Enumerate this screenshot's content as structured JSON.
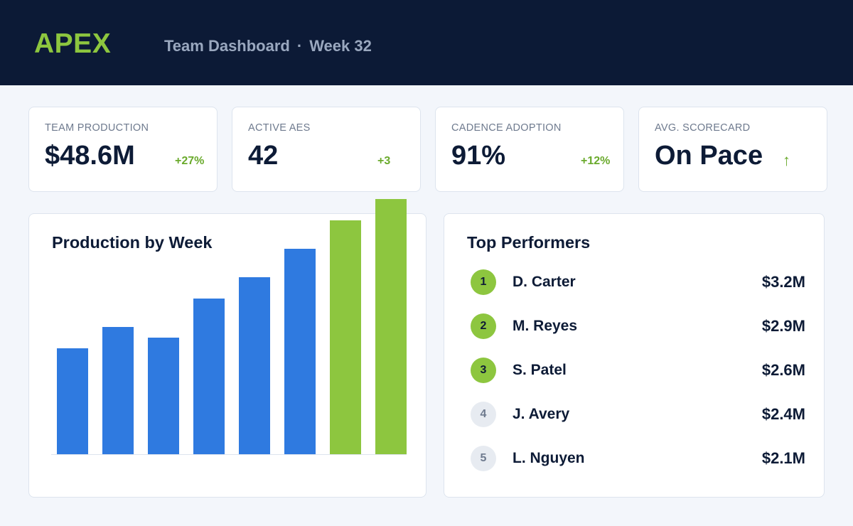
{
  "header": {
    "logo": "APEX",
    "title": "Team Dashboard",
    "separator": "·",
    "week": "Week 32"
  },
  "kpis": [
    {
      "label": "TEAM PRODUCTION",
      "value": "$48.6M",
      "delta": "+27%"
    },
    {
      "label": "ACTIVE AES",
      "value": "42",
      "delta": "+3"
    },
    {
      "label": "CADENCE ADOPTION",
      "value": "91%",
      "delta": "+12%"
    },
    {
      "label": "AVG. SCORECARD",
      "value": "On Pace",
      "delta": "↑"
    }
  ],
  "chart": {
    "title": "Production by Week"
  },
  "chart_data": {
    "type": "bar",
    "title": "Production by Week",
    "categories": [
      "",
      "",
      "",
      "",
      "",
      "",
      "",
      ""
    ],
    "values": [
      149,
      179,
      164,
      219,
      249,
      289,
      329,
      359
    ],
    "highlight_from_index": 6,
    "ylim": [
      0,
      359
    ],
    "colors": {
      "default": "#2f7ae0",
      "highlight": "#8dc63f"
    },
    "grid": false
  },
  "performers": {
    "title": "Top Performers",
    "items": [
      {
        "rank": "1",
        "name": "D. Carter",
        "amount": "$3.2M"
      },
      {
        "rank": "2",
        "name": "M. Reyes",
        "amount": "$2.9M"
      },
      {
        "rank": "3",
        "name": "S. Patel",
        "amount": "$2.6M"
      },
      {
        "rank": "4",
        "name": "J. Avery",
        "amount": "$2.4M"
      },
      {
        "rank": "5",
        "name": "L. Nguyen",
        "amount": "$2.1M"
      }
    ]
  },
  "colors": {
    "header_bg": "#0c1a36",
    "accent_green": "#8dc63f",
    "bar_blue": "#2f7ae0",
    "delta_green": "#6aaa2c"
  }
}
